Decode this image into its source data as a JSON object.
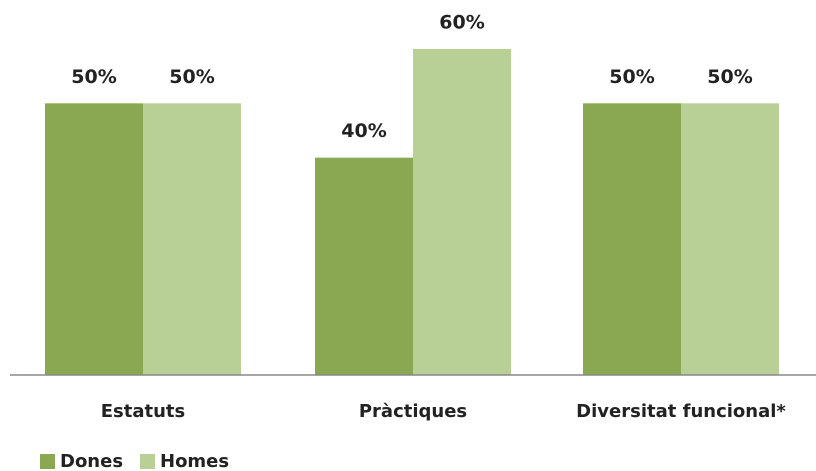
{
  "chart_data": {
    "type": "bar",
    "categories": [
      "Estatuts",
      "Pràctiques",
      "Diversitat funcional*"
    ],
    "series": [
      {
        "name": "Dones",
        "color": "#8aa752",
        "values": [
          50,
          40,
          50
        ],
        "value_labels": [
          "50%",
          "40%",
          "50%"
        ]
      },
      {
        "name": "Homes",
        "color": "#b8cf96",
        "values": [
          50,
          60,
          50
        ],
        "value_labels": [
          "50%",
          "60%",
          "50%"
        ]
      }
    ],
    "legend": "bottom-left"
  }
}
